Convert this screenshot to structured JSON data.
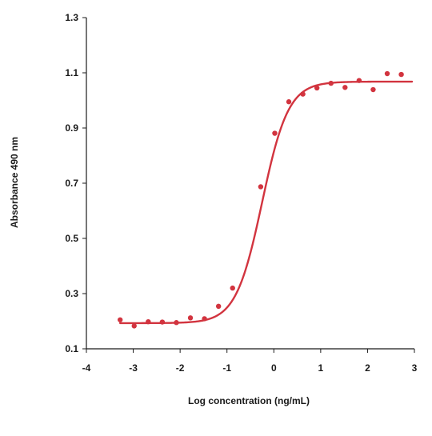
{
  "chart_data": {
    "type": "scatter",
    "title": "",
    "xlabel": "Log concentration (ng/mL)",
    "ylabel": "Absorbance 490 nm",
    "xlim": [
      -4,
      3
    ],
    "ylim": [
      0.1,
      1.3
    ],
    "x_ticks": [
      -4,
      -3,
      -2,
      -1,
      0,
      1,
      2,
      3
    ],
    "x_tick_labels": [
      "-4",
      "-3",
      "-2",
      "-1",
      "0",
      "1",
      "2",
      "3"
    ],
    "y_ticks": [
      0.1,
      0.3,
      0.5,
      0.7,
      0.9,
      1.1,
      1.3
    ],
    "y_tick_labels": [
      "0.1",
      "0.3",
      "0.5",
      "0.7",
      "0.9",
      "1.1",
      "1.3"
    ],
    "grid": false,
    "legend": "none",
    "color": "#d2343f",
    "series": [
      {
        "points": [
          [
            -3.28,
            0.205
          ],
          [
            -2.98,
            0.183
          ],
          [
            -2.68,
            0.198
          ],
          [
            -2.38,
            0.197
          ],
          [
            -2.08,
            0.195
          ],
          [
            -1.78,
            0.212
          ],
          [
            -1.48,
            0.209
          ],
          [
            -1.18,
            0.254
          ],
          [
            -0.88,
            0.32
          ],
          [
            -0.28,
            0.687
          ],
          [
            0.02,
            0.881
          ],
          [
            0.32,
            0.995
          ],
          [
            0.62,
            1.023
          ],
          [
            0.92,
            1.045
          ],
          [
            1.22,
            1.062
          ],
          [
            1.52,
            1.047
          ],
          [
            1.82,
            1.072
          ],
          [
            2.12,
            1.039
          ],
          [
            2.42,
            1.097
          ],
          [
            2.72,
            1.094
          ]
        ],
        "fit": {
          "model": "4PL",
          "bottom": 0.193,
          "top": 1.068,
          "ec50_log": -0.25,
          "hill": 1.55,
          "x_range": [
            -3.28,
            2.95
          ]
        }
      }
    ]
  }
}
